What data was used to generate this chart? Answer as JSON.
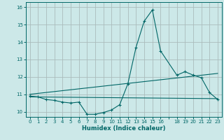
{
  "title": "",
  "xlabel": "Humidex (Indice chaleur)",
  "bg_color": "#cce8e8",
  "grid_color": "#aabbbb",
  "line_color": "#006666",
  "xlim": [
    -0.5,
    23.5
  ],
  "ylim": [
    9.7,
    16.3
  ],
  "yticks": [
    10,
    11,
    12,
    13,
    14,
    15,
    16
  ],
  "main_x": [
    0,
    1,
    2,
    3,
    4,
    5,
    6,
    7,
    8,
    9,
    10,
    11,
    12,
    13,
    14,
    15,
    16,
    18,
    19,
    20,
    21,
    22,
    23
  ],
  "main_y": [
    10.9,
    10.85,
    10.7,
    10.65,
    10.55,
    10.5,
    10.55,
    9.85,
    9.85,
    9.95,
    10.1,
    10.4,
    11.6,
    13.7,
    15.2,
    15.85,
    13.5,
    12.1,
    12.3,
    12.1,
    11.95,
    11.1,
    10.7
  ],
  "trend1_x": [
    0,
    23
  ],
  "trend1_y": [
    11.0,
    12.2
  ],
  "trend2_x": [
    0,
    23
  ],
  "trend2_y": [
    10.85,
    10.75
  ]
}
